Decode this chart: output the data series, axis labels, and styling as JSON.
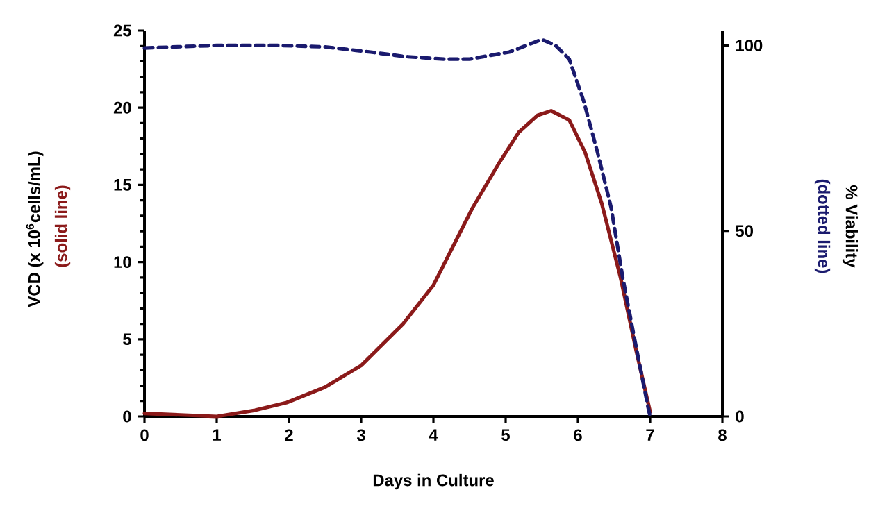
{
  "chart_data": {
    "type": "line",
    "xlabel": "Days in Culture",
    "ylabel": "VCD (x 10$^{6}$cells/mL)",
    "y2label": "% Viability",
    "annotations": [
      "(solid line)",
      "(dotted line)"
    ],
    "xlim": [
      0,
      8
    ],
    "xticks": [
      0,
      1,
      2,
      3,
      4,
      5,
      6,
      7,
      8
    ],
    "ylim": [
      0,
      25
    ],
    "yticks": [
      0,
      5,
      10,
      15,
      20,
      25
    ],
    "y2lim": [
      0,
      104
    ],
    "y2ticks": [
      0,
      50,
      100
    ],
    "series": [
      {
        "color": "#8b1a1a",
        "line_style": "solid",
        "x": [
          0,
          0.5,
          1,
          1.53,
          1.97,
          2.5,
          3,
          3.58,
          4,
          4.54,
          4.92,
          5.18,
          5.44,
          5.63,
          5.88,
          6.1,
          6.33,
          6.59,
          6.81,
          7.0
        ],
        "values": [
          0.2,
          0.1,
          0.0,
          0.4,
          0.9,
          1.9,
          3.3,
          6.0,
          8.5,
          13.5,
          16.5,
          18.4,
          19.5,
          19.8,
          19.2,
          17.1,
          13.8,
          9.0,
          4.2,
          0.3
        ]
      },
      {
        "color": "#1a1a6e",
        "line_style": "dashed",
        "axis": "y2",
        "x": [
          0,
          1,
          1.85,
          2.5,
          3.13,
          3.6,
          4.15,
          4.5,
          5.05,
          5.5,
          5.69,
          5.88,
          6.08,
          6.27,
          6.46,
          6.62,
          6.78,
          6.97,
          7.0
        ],
        "values": [
          99.3,
          100,
          100,
          99.6,
          98.2,
          97,
          96.3,
          96.3,
          98.2,
          101.6,
          100,
          96.3,
          85,
          71.3,
          56.3,
          37.5,
          21.3,
          2.6,
          0
        ]
      }
    ]
  }
}
